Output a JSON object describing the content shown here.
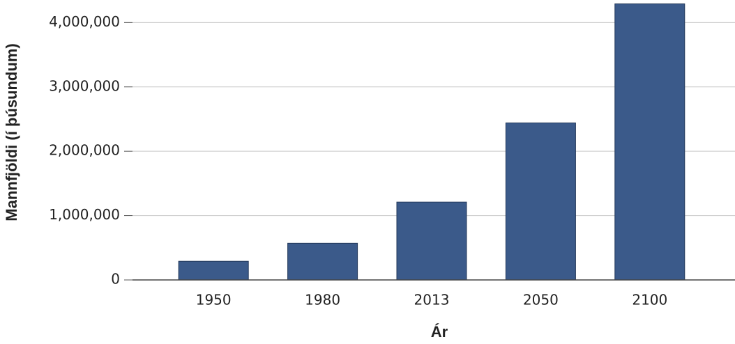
{
  "chart_data": {
    "type": "bar",
    "x_label": "Ár",
    "y_label": "Mannfjöldi (í þúsundum)",
    "categories": [
      "1950",
      "1980",
      "2013",
      "2050",
      "2100"
    ],
    "values": [
      290000,
      570000,
      1210000,
      2440000,
      4290000
    ],
    "color": "#3b5a8a",
    "ylim": [
      0,
      4350000
    ],
    "yticks": [
      0,
      {
        "value": 1000000,
        "label": "1,000,000"
      },
      {
        "value": 2000000,
        "label": "2,000,000"
      },
      {
        "value": 3000000,
        "label": "3,000,000"
      },
      {
        "value": 4000000,
        "label": "4,000,000"
      }
    ],
    "grid": true
  }
}
